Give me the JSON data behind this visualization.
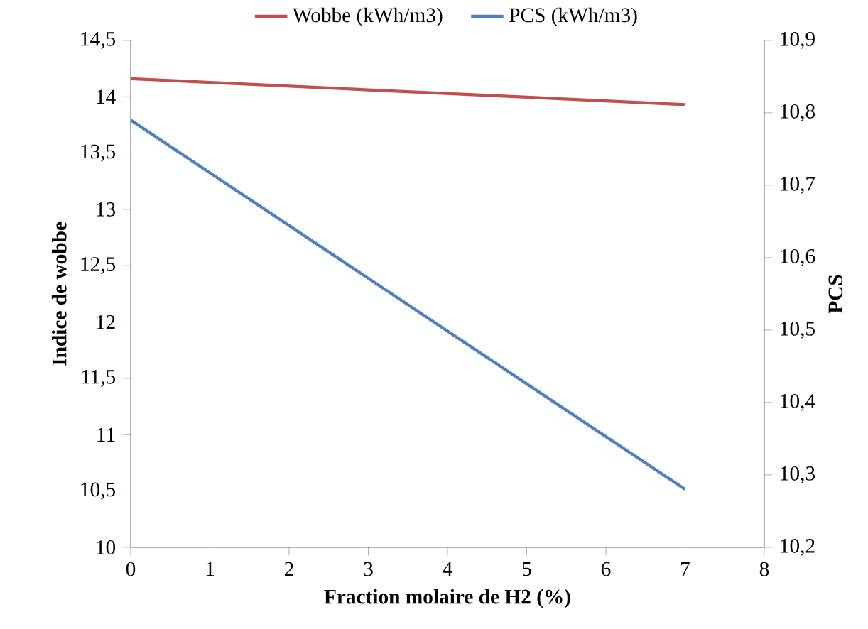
{
  "chart_data": {
    "type": "line",
    "xlabel": "Fraction molaire de H2 (%)",
    "ylabel": "Indice de wobbe",
    "y2label": "PCS",
    "x": [
      0,
      7
    ],
    "series": [
      {
        "name": "Wobbe (kWh/m3)",
        "color": "#c0504d",
        "values": [
          14.16,
          13.93
        ]
      },
      {
        "name": "PCS (kWh/m3)",
        "color": "#4f81bd",
        "values": [
          10.79,
          10.28
        ],
        "axis": "y2"
      }
    ],
    "xlim": [
      0,
      8
    ],
    "xticks": [
      0,
      1,
      2,
      3,
      4,
      5,
      6,
      7,
      8
    ],
    "ylim": [
      10,
      14.5
    ],
    "yticks": [
      10,
      {
        "value": 10.5,
        "label": "10,5"
      },
      11,
      {
        "value": 11.5,
        "label": "11,5"
      },
      12,
      {
        "value": 12.5,
        "label": "12,5"
      },
      13,
      {
        "value": 13.5,
        "label": "13,5"
      },
      14,
      {
        "value": 14.5,
        "label": "14,5"
      }
    ],
    "y2lim": [
      10.2,
      10.9
    ],
    "y2ticks": [
      {
        "value": 10.2,
        "label": "10,2"
      },
      {
        "value": 10.3,
        "label": "10,3"
      },
      {
        "value": 10.4,
        "label": "10,4"
      },
      {
        "value": 10.5,
        "label": "10,5"
      },
      {
        "value": 10.6,
        "label": "10,6"
      },
      {
        "value": 10.7,
        "label": "10,7"
      },
      {
        "value": 10.8,
        "label": "10,8"
      },
      {
        "value": 10.9,
        "label": "10,9"
      }
    ],
    "legend": "top",
    "grid": false
  }
}
